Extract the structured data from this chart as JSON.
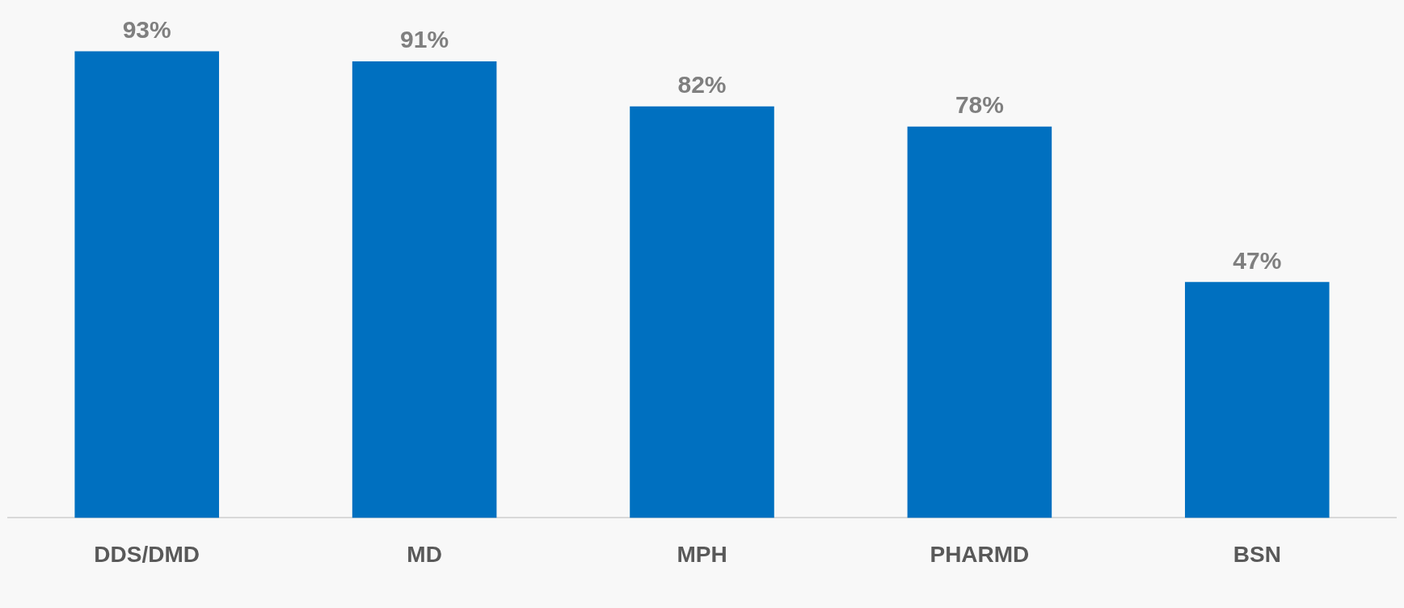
{
  "chart_data": {
    "type": "bar",
    "categories": [
      "DDS/DMD",
      "MD",
      "MPH",
      "PHARMD",
      "BSN"
    ],
    "values": [
      93,
      91,
      82,
      78,
      47
    ],
    "value_labels": [
      "93%",
      "91%",
      "82%",
      "78%",
      "47%"
    ],
    "color": "#0070c0",
    "grid": false,
    "legend": false
  }
}
